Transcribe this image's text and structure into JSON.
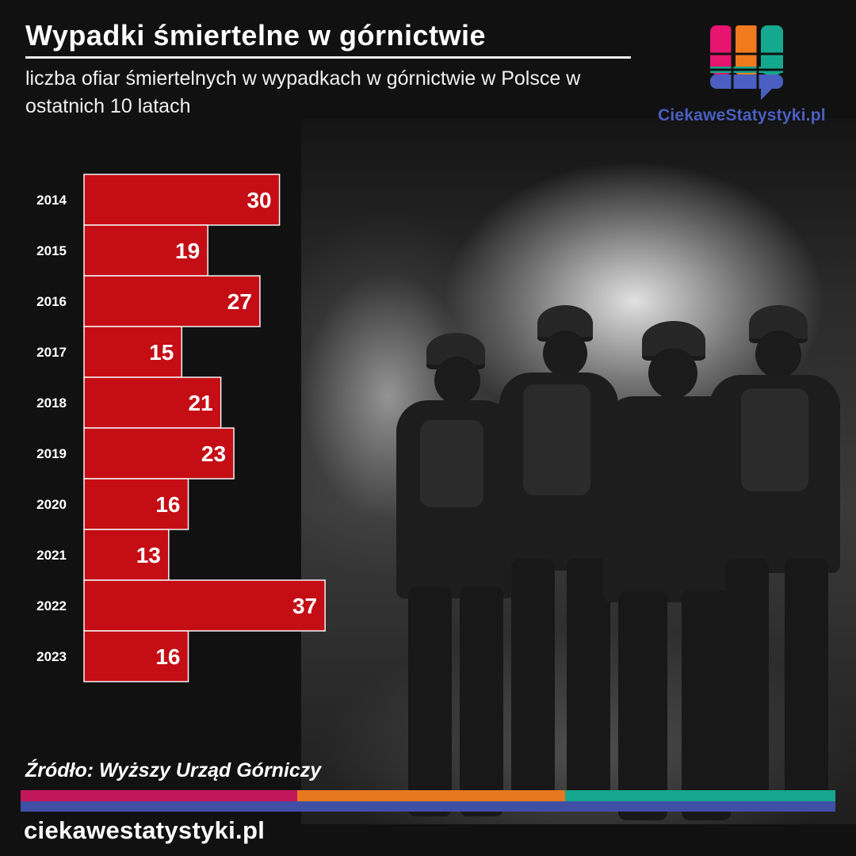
{
  "header": {
    "title": "Wypadki śmiertelne w górnictwie",
    "subtitle": "liczba ofiar śmiertelnych w wypadkach w górnictwie w Polsce w ostatnich 10 latach"
  },
  "logo": {
    "text": "CiekaweStatystyki.pl",
    "icon": "chart-speech-bubble-icon",
    "colors": [
      "#e7156f",
      "#f07a1e",
      "#14a88f",
      "#4a5fc0"
    ]
  },
  "chart_data": {
    "type": "bar",
    "orientation": "horizontal",
    "categories": [
      "2014",
      "2015",
      "2016",
      "2017",
      "2018",
      "2019",
      "2020",
      "2021",
      "2022",
      "2023"
    ],
    "values": [
      30,
      19,
      27,
      15,
      21,
      23,
      16,
      13,
      37,
      16
    ],
    "title": "",
    "xlabel": "",
    "ylabel": "",
    "bar_color": "#c40d15",
    "grid": false
  },
  "source": "Źródło: Wyższy Urząd Górniczy",
  "footer": {
    "site": "ciekawestatystyki.pl",
    "stripe_colors": [
      "#c2185b",
      "#e8781f",
      "#16a58f"
    ],
    "stripe_bottom_color": "#3f4fa6"
  },
  "background": {
    "icon": "miners-walking-into-tunnel-photo"
  }
}
